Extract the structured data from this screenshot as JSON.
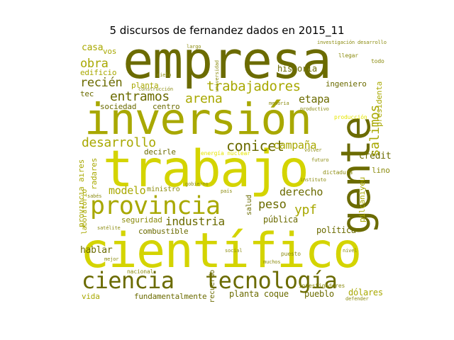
{
  "title": "5 discursos de fernandez dados en 2015_11",
  "colors": {
    "dark": "#6b6b00",
    "mid": "#a8a800",
    "bright": "#d4d400",
    "olive": "#8c8c10",
    "light": "#e6e600"
  },
  "words": [
    {
      "t": "empresa",
      "c": "dark"
    },
    {
      "t": "inversión",
      "c": "mid"
    },
    {
      "t": "trabajo",
      "c": "bright"
    },
    {
      "t": "científico",
      "c": "bright"
    },
    {
      "t": "gente",
      "c": "dark"
    },
    {
      "t": "provincia",
      "c": "mid"
    },
    {
      "t": "ciencia",
      "c": "dark"
    },
    {
      "t": "tecnología",
      "c": "dark"
    },
    {
      "t": "trabajadores",
      "c": "mid"
    },
    {
      "t": "desarrollo",
      "c": "mid"
    },
    {
      "t": "conicet",
      "c": "dark"
    },
    {
      "t": "entramos",
      "c": "dark"
    },
    {
      "t": "arena",
      "c": "mid"
    },
    {
      "t": "etapa",
      "c": "dark"
    },
    {
      "t": "salimos",
      "c": "mid"
    },
    {
      "t": "industria",
      "c": "dark"
    },
    {
      "t": "modelo",
      "c": "mid"
    },
    {
      "t": "derecho",
      "c": "dark"
    },
    {
      "t": "peso",
      "c": "dark"
    },
    {
      "t": "ypf",
      "c": "mid"
    },
    {
      "t": "campaña",
      "c": "mid"
    },
    {
      "t": "obra",
      "c": "mid"
    },
    {
      "t": "recién",
      "c": "dark"
    },
    {
      "t": "casa",
      "c": "mid"
    },
    {
      "t": "historia",
      "c": "dark"
    },
    {
      "t": "ingeniero",
      "c": "dark"
    },
    {
      "t": "crédito",
      "c": "dark"
    },
    {
      "t": "lino",
      "c": "olive"
    },
    {
      "t": "hablar",
      "c": "dark"
    },
    {
      "t": "vida",
      "c": "mid"
    },
    {
      "t": "fundamentalmente",
      "c": "dark"
    },
    {
      "t": "planta coque",
      "c": "dark"
    },
    {
      "t": "pueblo",
      "c": "dark"
    },
    {
      "t": "dólares",
      "c": "mid"
    },
    {
      "t": "política",
      "c": "dark"
    },
    {
      "t": "pública",
      "c": "dark"
    },
    {
      "t": "seguridad",
      "c": "olive"
    },
    {
      "t": "combustible",
      "c": "dark"
    },
    {
      "t": "sociedad",
      "c": "dark"
    },
    {
      "t": "centro",
      "c": "dark"
    },
    {
      "t": "decirle",
      "c": "dark"
    },
    {
      "t": "radares",
      "c": "mid"
    },
    {
      "t": "edificio",
      "c": "mid"
    },
    {
      "t": "planta",
      "c": "mid"
    },
    {
      "t": "vos",
      "c": "mid"
    },
    {
      "t": "tec",
      "c": "dark"
    },
    {
      "t": "provincia aires",
      "c": "mid"
    },
    {
      "t": "presidenta",
      "c": "mid"
    },
    {
      "t": "pilcaniyeu",
      "c": "mid"
    },
    {
      "t": "laboratorio",
      "c": "mid"
    },
    {
      "t": "recuerdo",
      "c": "dark"
    },
    {
      "t": "ministro",
      "c": "olive"
    },
    {
      "t": "salud",
      "c": "dark"
    },
    {
      "t": "dictadura",
      "c": "olive"
    },
    {
      "t": "energía nuclear",
      "c": "light"
    },
    {
      "t": "investigadores",
      "c": "olive"
    },
    {
      "t": "nacional",
      "c": "olive"
    },
    {
      "t": "puesto",
      "c": "olive"
    },
    {
      "t": "llegar",
      "c": "olive"
    },
    {
      "t": "todo",
      "c": "olive"
    },
    {
      "t": "memoria",
      "c": "olive"
    },
    {
      "t": "productivo",
      "c": "olive"
    },
    {
      "t": "producción",
      "c": "light"
    },
    {
      "t": "construcción",
      "c": "olive"
    },
    {
      "t": "país",
      "c": "olive"
    },
    {
      "t": "volver",
      "c": "olive"
    },
    {
      "t": "instituto",
      "c": "olive"
    },
    {
      "t": "mejor",
      "c": "olive"
    },
    {
      "t": "defender",
      "c": "olive"
    },
    {
      "t": "muchos",
      "c": "olive"
    },
    {
      "t": "nivel",
      "c": "olive"
    },
    {
      "t": "satélite",
      "c": "olive"
    },
    {
      "t": "social",
      "c": "olive"
    },
    {
      "t": "largo",
      "c": "olive"
    },
    {
      "t": "sabés",
      "c": "olive"
    },
    {
      "t": "cielo",
      "c": "olive"
    },
    {
      "t": "futuro",
      "c": "olive"
    },
    {
      "t": "gobierno",
      "c": "olive"
    },
    {
      "t": "universidad",
      "c": "olive"
    },
    {
      "t": "investigación desarrollo",
      "c": "olive"
    }
  ]
}
